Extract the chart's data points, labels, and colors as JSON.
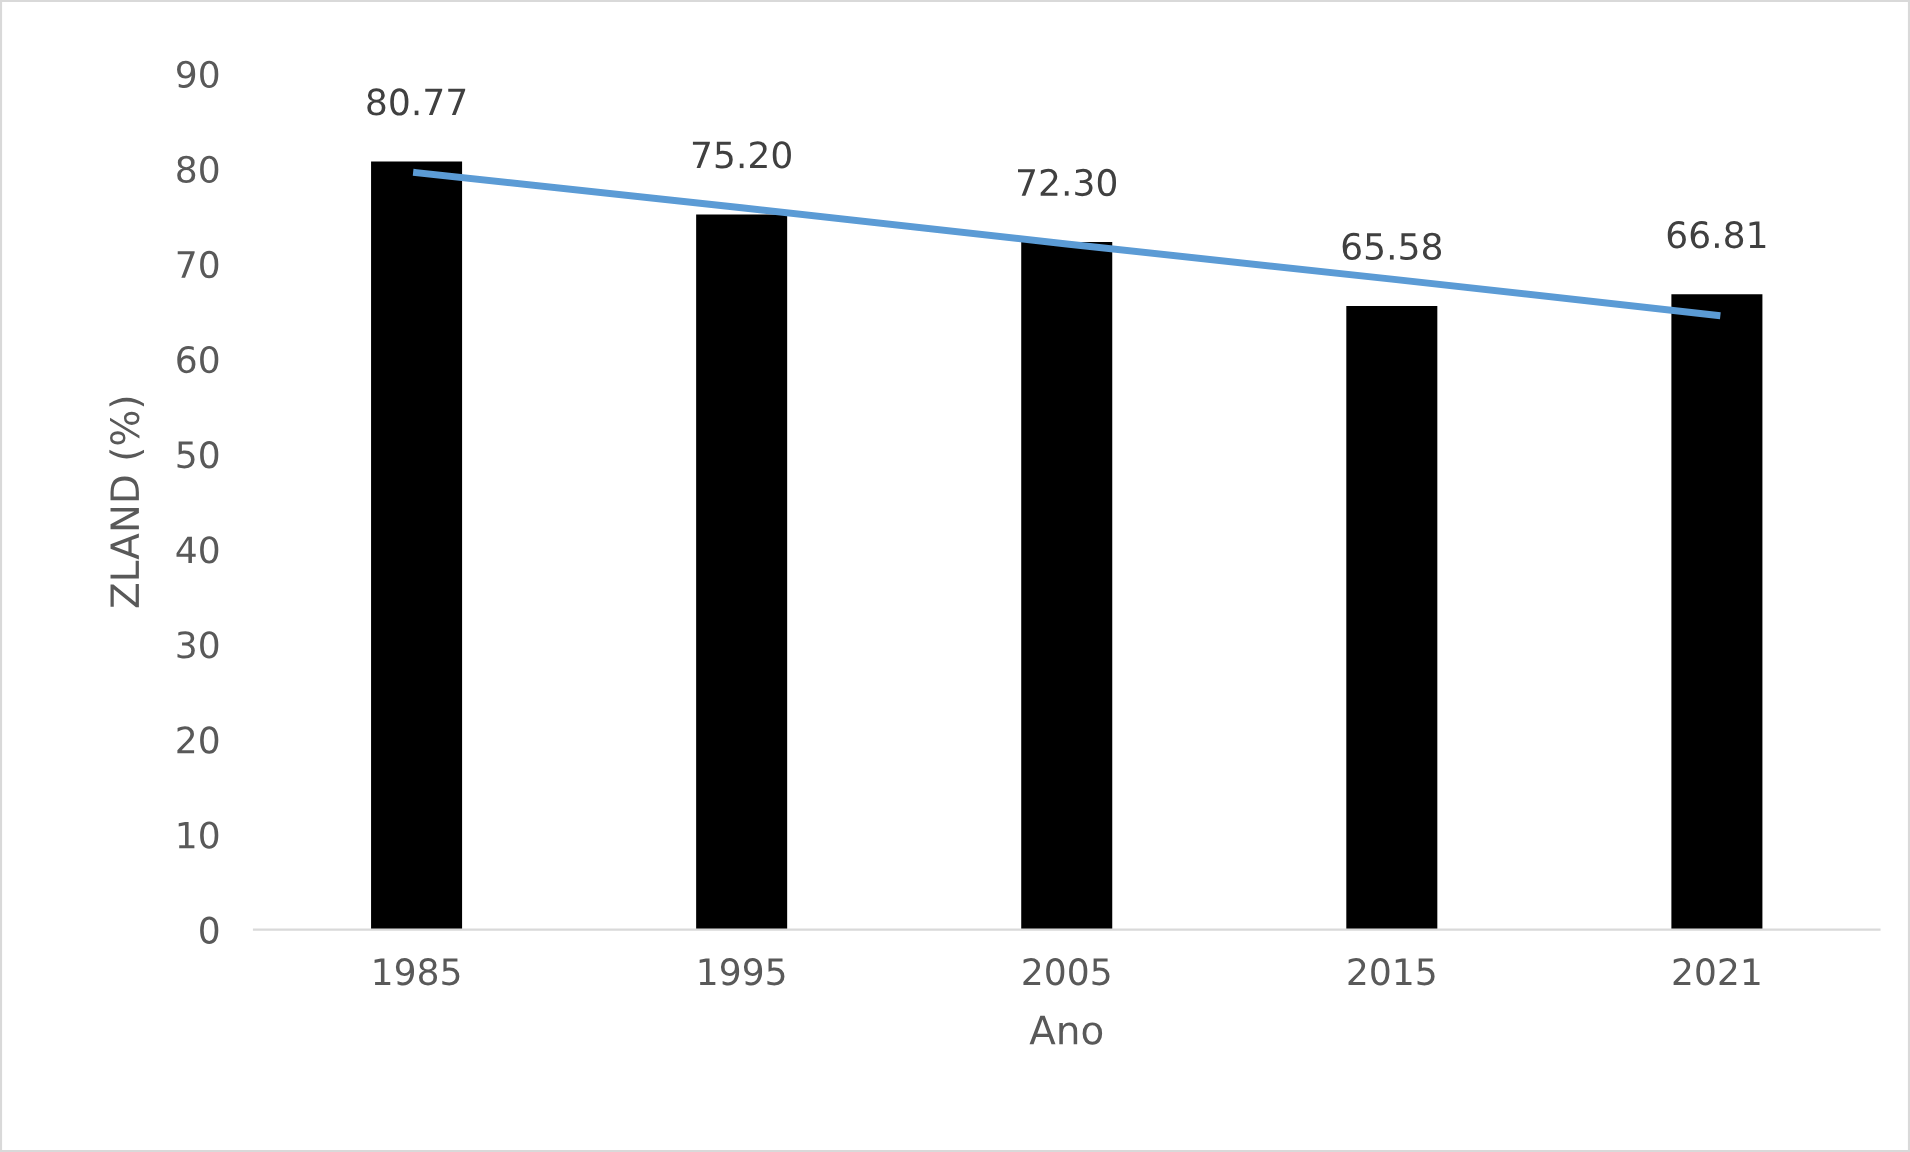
{
  "chart_data": {
    "type": "bar",
    "xlabel": "Ano",
    "ylabel": "ZLAND (%)",
    "categories": [
      "1985",
      "1995",
      "2005",
      "2015",
      "2021"
    ],
    "series": [
      {
        "color": "#000000",
        "values": [
          80.77,
          75.2,
          72.3,
          65.58,
          66.81
        ],
        "value_labels": [
          "80.77",
          "75.20",
          "72.30",
          "65.58",
          "66.81"
        ]
      },
      {
        "type": "line",
        "color": "#5b9bd5",
        "values": [
          79.6,
          75.9,
          72.1,
          68.4,
          64.6
        ]
      }
    ],
    "ylim": [
      0,
      90
    ],
    "yticks": [
      0,
      10,
      20,
      30,
      40,
      50,
      60,
      70,
      80,
      90
    ],
    "grid": false,
    "legend": false,
    "marker": "none"
  }
}
